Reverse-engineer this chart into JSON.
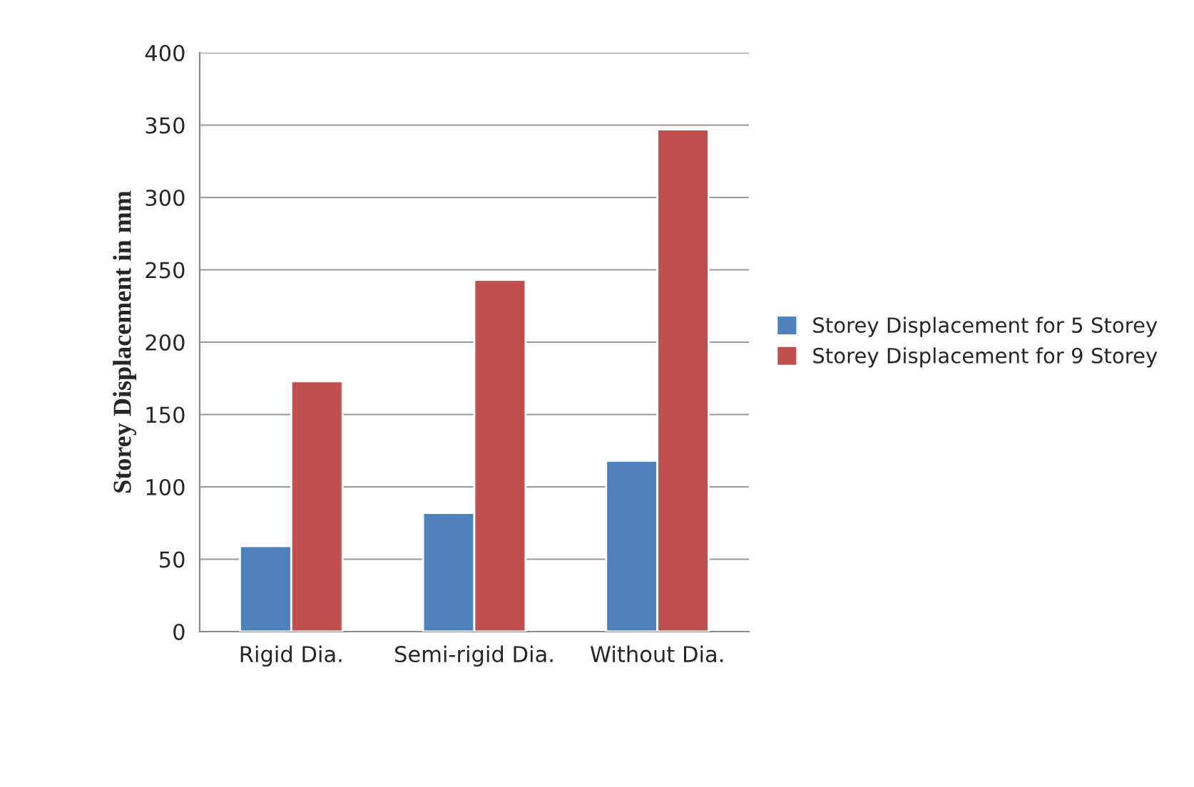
{
  "chart_data": {
    "type": "bar",
    "ylabel": "Storey Displacement in mm",
    "categories": [
      "Rigid Dia.",
      "Semi-rigid Dia.",
      "Without Dia."
    ],
    "series": [
      {
        "name": "Storey Displacement for 5 Storey",
        "color": "#4f81bd",
        "values": [
          59,
          82,
          118
        ]
      },
      {
        "name": "Storey Displacement for 9 Storey",
        "color": "#c0504d",
        "values": [
          173,
          243,
          347
        ]
      }
    ],
    "ylim": [
      0,
      400
    ],
    "yticks": [
      0,
      50,
      100,
      150,
      200,
      250,
      300,
      350,
      400
    ],
    "grid": "y",
    "legend": "right"
  }
}
